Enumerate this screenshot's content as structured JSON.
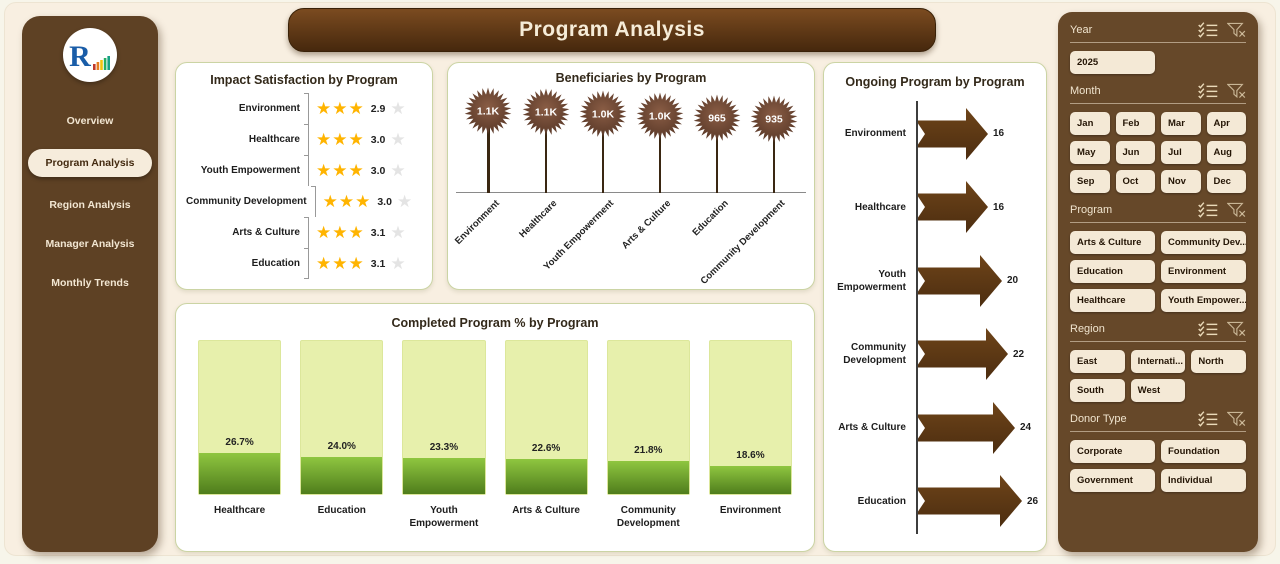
{
  "app": {
    "title": "Program Analysis"
  },
  "sidebar": {
    "items": [
      {
        "label": "Overview",
        "active": false
      },
      {
        "label": "Program Analysis",
        "active": true
      },
      {
        "label": "Region Analysis",
        "active": false
      },
      {
        "label": "Manager Analysis",
        "active": false
      },
      {
        "label": "Monthly Trends",
        "active": false
      }
    ]
  },
  "charts": {
    "impact": {
      "title": "Impact Satisfaction by Program",
      "rows": [
        {
          "label": "Environment",
          "stars_filled": 3,
          "value": "2.9"
        },
        {
          "label": "Healthcare",
          "stars_filled": 3,
          "value": "3.0"
        },
        {
          "label": "Youth Empowerment",
          "stars_filled": 3,
          "value": "3.0"
        },
        {
          "label": "Community Development",
          "stars_filled": 3,
          "value": "3.0"
        },
        {
          "label": "Arts & Culture",
          "stars_filled": 3,
          "value": "3.1"
        },
        {
          "label": "Education",
          "stars_filled": 3,
          "value": "3.1"
        }
      ]
    },
    "beneficiaries": {
      "title": "Beneficiaries by Program",
      "items": [
        {
          "label": "Environment",
          "value": "1.1K",
          "amount": 1100
        },
        {
          "label": "Healthcare",
          "value": "1.1K",
          "amount": 1090
        },
        {
          "label": "Youth Empowerment",
          "value": "1.0K",
          "amount": 1040
        },
        {
          "label": "Arts & Culture",
          "value": "1.0K",
          "amount": 1005
        },
        {
          "label": "Education",
          "value": "965",
          "amount": 965
        },
        {
          "label": "Community Development",
          "value": "935",
          "amount": 935
        }
      ]
    },
    "completed": {
      "title": "Completed Program % by Program",
      "items": [
        {
          "label": "Healthcare",
          "value": 26.7,
          "display": "26.7%"
        },
        {
          "label": "Education",
          "value": 24.0,
          "display": "24.0%"
        },
        {
          "label": "Youth Empowerment",
          "value": 23.3,
          "display": "23.3%"
        },
        {
          "label": "Arts & Culture",
          "value": 22.6,
          "display": "22.6%"
        },
        {
          "label": "Community Development",
          "value": 21.8,
          "display": "21.8%"
        },
        {
          "label": "Environment",
          "value": 18.6,
          "display": "18.6%"
        }
      ]
    },
    "ongoing": {
      "title": "Ongoing Program by Program",
      "max": 26,
      "items": [
        {
          "label": "Environment",
          "value": 16
        },
        {
          "label": "Healthcare",
          "value": 16
        },
        {
          "label": "Youth Empowerment",
          "value": 20
        },
        {
          "label": "Community Development",
          "value": 22
        },
        {
          "label": "Arts & Culture",
          "value": 24
        },
        {
          "label": "Education",
          "value": 26
        }
      ]
    }
  },
  "filters": {
    "sections": [
      {
        "title": "Year",
        "columns": 2,
        "options": [
          "2025"
        ]
      },
      {
        "title": "Month",
        "columns": 4,
        "options": [
          "Jan",
          "Feb",
          "Mar",
          "Apr",
          "May",
          "Jun",
          "Jul",
          "Aug",
          "Sep",
          "Oct",
          "Nov",
          "Dec"
        ]
      },
      {
        "title": "Program",
        "columns": 2,
        "options": [
          "Arts & Culture",
          "Community Dev...",
          "Education",
          "Environment",
          "Healthcare",
          "Youth Empower..."
        ]
      },
      {
        "title": "Region",
        "columns": 3,
        "options": [
          "East",
          "Internati...",
          "North",
          "South",
          "West"
        ]
      },
      {
        "title": "Donor Type",
        "columns": 2,
        "options": [
          "Corporate",
          "Foundation",
          "Government",
          "Individual"
        ]
      }
    ]
  },
  "colors": {
    "sidebar_brown": "#5E4124",
    "filter_brown": "#664829",
    "header_brown": "#4F2E12",
    "cream_bg": "#F8EFE1",
    "star_gold": "#FFB400",
    "bar_track_green": "#E7F0AC",
    "bar_fill_green": "#6FA52E",
    "arrow_brown": "#5C3A16",
    "burst_brown": "#6B4430"
  }
}
